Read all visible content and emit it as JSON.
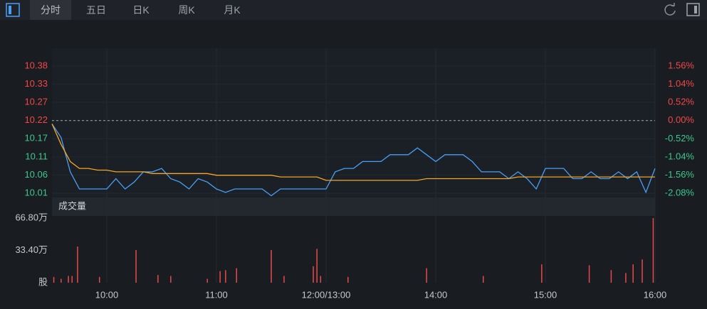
{
  "tabs": [
    "分时",
    "五日",
    "日K",
    "周K",
    "月K"
  ],
  "chart_data": [
    {
      "type": "line",
      "x": [
        0,
        5,
        10,
        15,
        20,
        25,
        30,
        35,
        40,
        45,
        50,
        55,
        60,
        65,
        70,
        75,
        80,
        85,
        90,
        95,
        100,
        105,
        110,
        115,
        120,
        125,
        130,
        135,
        140,
        145,
        150,
        155,
        160,
        165,
        170,
        175,
        180,
        185,
        190,
        195,
        200,
        205,
        210,
        215,
        220,
        225,
        230,
        235,
        240,
        245,
        250,
        255,
        260,
        265,
        270,
        275,
        280,
        285,
        290,
        295,
        300,
        305,
        310,
        315,
        320,
        325,
        330
      ],
      "xlim": [
        0,
        330
      ],
      "xticks": [
        {
          "value": 30,
          "label": "10:00"
        },
        {
          "value": 90,
          "label": "11:00"
        },
        {
          "value": 150,
          "label": "12:00/13:00"
        },
        {
          "value": 210,
          "label": "14:00"
        },
        {
          "value": 270,
          "label": "15:00"
        },
        {
          "value": 330,
          "label": "16:00"
        }
      ],
      "series": [
        {
          "color": "#4a9ff5",
          "values": [
            10.21,
            10.17,
            10.07,
            10.02,
            10.02,
            10.02,
            10.02,
            10.05,
            10.02,
            10.04,
            10.07,
            10.07,
            10.08,
            10.05,
            10.04,
            10.02,
            10.05,
            10.04,
            10.02,
            10.01,
            10.02,
            10.02,
            10.02,
            10.02,
            10.0,
            10.02,
            10.02,
            10.02,
            10.02,
            10.02,
            10.02,
            10.07,
            10.08,
            10.08,
            10.1,
            10.1,
            10.1,
            10.12,
            10.12,
            10.12,
            10.14,
            10.12,
            10.1,
            10.12,
            10.12,
            10.12,
            10.1,
            10.07,
            10.07,
            10.07,
            10.05,
            10.07,
            10.05,
            10.02,
            10.08,
            10.08,
            10.08,
            10.05,
            10.05,
            10.07,
            10.05,
            10.05,
            10.07,
            10.05,
            10.07,
            10.01,
            10.08
          ]
        },
        {
          "color": "#f5a623",
          "values": [
            10.21,
            10.15,
            10.1,
            10.08,
            10.08,
            10.075,
            10.075,
            10.07,
            10.07,
            10.07,
            10.07,
            10.065,
            10.065,
            10.065,
            10.065,
            10.065,
            10.065,
            10.065,
            10.06,
            10.06,
            10.06,
            10.06,
            10.06,
            10.06,
            10.06,
            10.055,
            10.055,
            10.055,
            10.055,
            10.055,
            10.045,
            10.045,
            10.045,
            10.045,
            10.045,
            10.045,
            10.045,
            10.045,
            10.045,
            10.045,
            10.045,
            10.05,
            10.05,
            10.05,
            10.05,
            10.05,
            10.05,
            10.05,
            10.05,
            10.05,
            10.05,
            10.055,
            10.055,
            10.055,
            10.055,
            10.055,
            10.055,
            10.055,
            10.055,
            10.055,
            10.055,
            10.055,
            10.055,
            10.055,
            10.055,
            10.055,
            10.055
          ]
        }
      ],
      "ylim": [
        9.995,
        10.431
      ],
      "yticks": [
        {
          "value": 10.3794,
          "label": "10.38"
        },
        {
          "value": 10.3263,
          "label": "10.33"
        },
        {
          "value": 10.2731,
          "label": "10.27"
        },
        {
          "value": 10.22,
          "label": "10.22"
        },
        {
          "value": 10.1669,
          "label": "10.17"
        },
        {
          "value": 10.1137,
          "label": "10.11"
        },
        {
          "value": 10.0606,
          "label": "10.06"
        },
        {
          "value": 10.0074,
          "label": "10.01"
        }
      ],
      "y2lim": [
        -2.2,
        2.07
      ],
      "y2ticks": [
        {
          "value": 1.56,
          "label": "1.56%"
        },
        {
          "value": 1.04,
          "label": "1.04%"
        },
        {
          "value": 0.52,
          "label": "0.52%"
        },
        {
          "value": 0,
          "label": "0.00%"
        },
        {
          "value": -0.52,
          "label": "-0.52%"
        },
        {
          "value": -1.04,
          "label": "-1.04%"
        },
        {
          "value": -1.56,
          "label": "-1.56%"
        },
        {
          "value": -2.08,
          "label": "-2.08%"
        }
      ],
      "up_color": "#f04848",
      "down_color": "#3cc98b",
      "grid": true
    },
    {
      "type": "bar",
      "title": "成交量",
      "x": [
        1,
        5,
        9,
        11,
        14,
        26,
        46,
        58,
        65,
        85,
        92,
        95,
        101,
        120,
        127,
        143,
        145,
        147,
        162,
        205,
        236,
        268,
        294,
        306,
        314,
        318,
        323,
        329
      ],
      "values": [
        6,
        4,
        7,
        7,
        37.4,
        6,
        33.8,
        8,
        7,
        4,
        12,
        13,
        15,
        33.8,
        7,
        17,
        35,
        7,
        6,
        15,
        7,
        19,
        18,
        13,
        10,
        19,
        24,
        66.8
      ],
      "color": "#e84a4a",
      "ylim": [
        0,
        66.8
      ],
      "yticks": [
        {
          "value": 0,
          "label": "股"
        },
        {
          "value": 33.4,
          "label": "33.40万"
        },
        {
          "value": 66.8,
          "label": "66.80万"
        }
      ]
    }
  ]
}
